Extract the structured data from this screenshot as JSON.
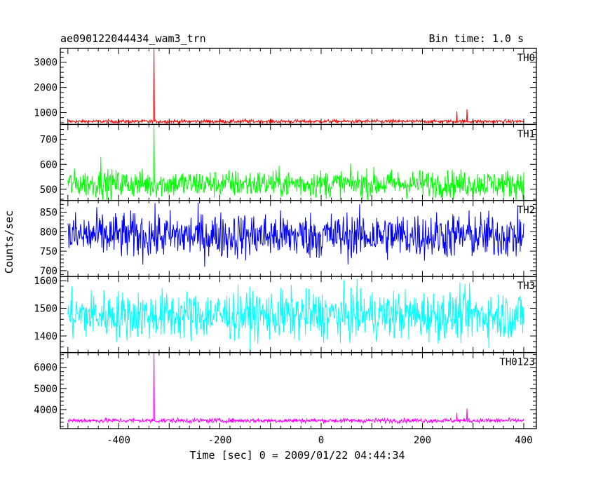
{
  "header": {
    "title": "ae090122044434_wam3_trn",
    "bin_time": "Bin time: 1.0 s"
  },
  "x_axis": {
    "label": "Time [sec] 0 = 2009/01/22 04:44:34",
    "ticks": [
      -400,
      -200,
      0,
      200,
      400
    ],
    "range": [
      -515,
      425
    ]
  },
  "y_axis_label": "Counts/sec",
  "chart_data": {
    "type": "line",
    "title": "ae090122044434_wam3_trn",
    "xlabel": "Time [sec] 0 = 2009/01/22 04:44:34",
    "ylabel": "Counts/sec",
    "xlim": [
      -515,
      425
    ],
    "bin_time_s": 1.0,
    "panels": [
      {
        "name": "TH0",
        "color": "#ff0000",
        "ylim": [
          530,
          3550
        ],
        "yticks": [
          1000,
          2000,
          3000
        ],
        "baseline": 650,
        "noise": 35,
        "x_start": -500,
        "x_end": 400,
        "spikes": [
          {
            "x": -330,
            "y": 3550
          },
          {
            "x": 268,
            "y": 1050
          },
          {
            "x": 288,
            "y": 1130
          },
          {
            "x": -150,
            "y": 760
          },
          {
            "x": 170,
            "y": 720
          }
        ]
      },
      {
        "name": "TH1",
        "color": "#00ff00",
        "ylim": [
          455,
          760
        ],
        "yticks": [
          500,
          600,
          700
        ],
        "baseline": 522,
        "noise": 28,
        "x_start": -500,
        "x_end": 400,
        "spikes": [
          {
            "x": -330,
            "y": 760
          },
          {
            "x": -435,
            "y": 630
          }
        ]
      },
      {
        "name": "TH2",
        "color": "#0000ff",
        "ylim": [
          685,
          880
        ],
        "yticks": [
          700,
          750,
          800,
          850
        ],
        "baseline": 790,
        "noise": 30,
        "x_start": -500,
        "x_end": 400,
        "spikes": []
      },
      {
        "name": "TH3",
        "color": "#00ffff",
        "ylim": [
          1340,
          1615
        ],
        "yticks": [
          1400,
          1500,
          1600
        ],
        "baseline": 1475,
        "noise": 45,
        "x_start": -500,
        "x_end": 400,
        "spikes": []
      },
      {
        "name": "TH0123",
        "color": "#ff00ff",
        "ylim": [
          3100,
          6700
        ],
        "yticks": [
          4000,
          5000,
          6000
        ],
        "baseline": 3480,
        "noise": 55,
        "x_start": -500,
        "x_end": 400,
        "spikes": [
          {
            "x": -330,
            "y": 6700
          },
          {
            "x": 268,
            "y": 3850
          },
          {
            "x": 288,
            "y": 4050
          }
        ]
      }
    ]
  }
}
